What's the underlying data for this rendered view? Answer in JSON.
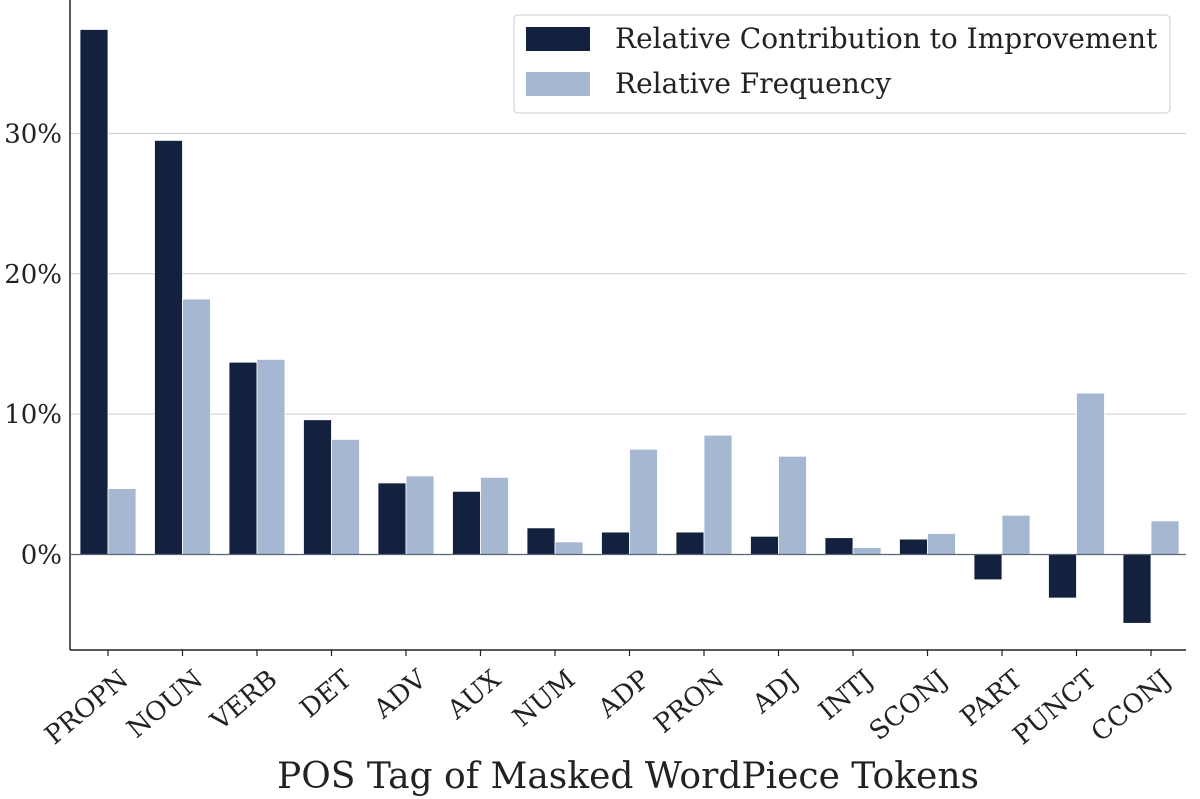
{
  "chart_data": {
    "type": "bar",
    "title": "",
    "xlabel": "POS Tag of Masked WordPiece Tokens",
    "ylabel": "",
    "ylim": [
      -6.8,
      39.5
    ],
    "yticks": [
      0,
      10,
      20,
      30
    ],
    "ytick_labels": [
      "0%",
      "10%",
      "20%",
      "30%"
    ],
    "grid": true,
    "legend_position": "top-right",
    "categories": [
      "PROPN",
      "NOUN",
      "VERB",
      "DET",
      "ADV",
      "AUX",
      "NUM",
      "ADP",
      "PRON",
      "ADJ",
      "INTJ",
      "SCONJ",
      "PART",
      "PUNCT",
      "CCONJ"
    ],
    "series": [
      {
        "name": "Relative Contribution to Improvement",
        "color": "#13213f",
        "values": [
          37.4,
          29.5,
          13.7,
          9.6,
          5.1,
          4.5,
          1.9,
          1.6,
          1.6,
          1.3,
          1.2,
          1.1,
          -1.8,
          -3.1,
          -4.9
        ]
      },
      {
        "name": "Relative Frequency",
        "color": "#a6b8d1",
        "values": [
          4.7,
          18.2,
          13.9,
          8.2,
          5.6,
          5.5,
          0.9,
          7.5,
          8.5,
          7.0,
          0.5,
          1.5,
          2.8,
          11.5,
          2.4
        ]
      }
    ]
  }
}
